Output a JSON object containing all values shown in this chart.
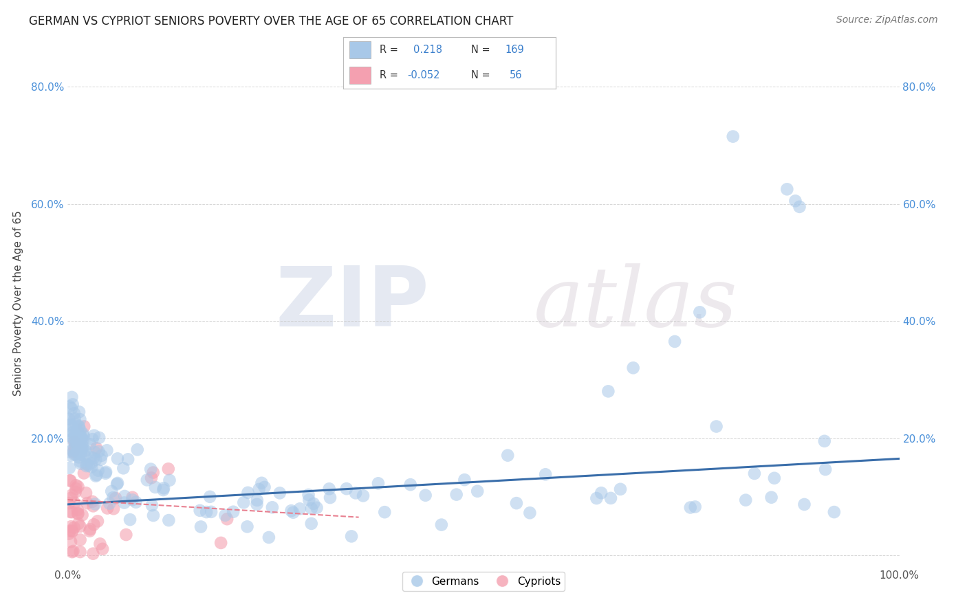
{
  "title": "GERMAN VS CYPRIOT SENIORS POVERTY OVER THE AGE OF 65 CORRELATION CHART",
  "source": "Source: ZipAtlas.com",
  "ylabel": "Seniors Poverty Over the Age of 65",
  "xlim": [
    0,
    1.0
  ],
  "ylim": [
    -0.02,
    0.88
  ],
  "ytick_positions": [
    0.0,
    0.2,
    0.4,
    0.6,
    0.8
  ],
  "ytick_labels": [
    "",
    "20.0%",
    "40.0%",
    "60.0%",
    "80.0%"
  ],
  "xtick_positions": [
    0.0,
    1.0
  ],
  "xtick_labels": [
    "0.0%",
    "100.0%"
  ],
  "blue_R": 0.218,
  "blue_N": 169,
  "pink_R": -0.052,
  "pink_N": 56,
  "blue_color": "#A8C8E8",
  "pink_color": "#F4A0B0",
  "blue_line_color": "#3A6EAA",
  "pink_line_color": "#E88090",
  "watermark_zip": "ZIP",
  "watermark_atlas": "atlas",
  "title_fontsize": 12,
  "legend_label_blue": "Germans",
  "legend_label_pink": "Cypriots",
  "background_color": "#ffffff",
  "grid_color": "#cccccc",
  "figsize": [
    14.06,
    8.92
  ],
  "dpi": 100,
  "blue_trend_x0": 0.0,
  "blue_trend_y0": 0.087,
  "blue_trend_x1": 1.0,
  "blue_trend_y1": 0.165,
  "pink_trend_x0": 0.0,
  "pink_trend_y0": 0.095,
  "pink_trend_x1": 0.35,
  "pink_trend_y1": 0.065
}
